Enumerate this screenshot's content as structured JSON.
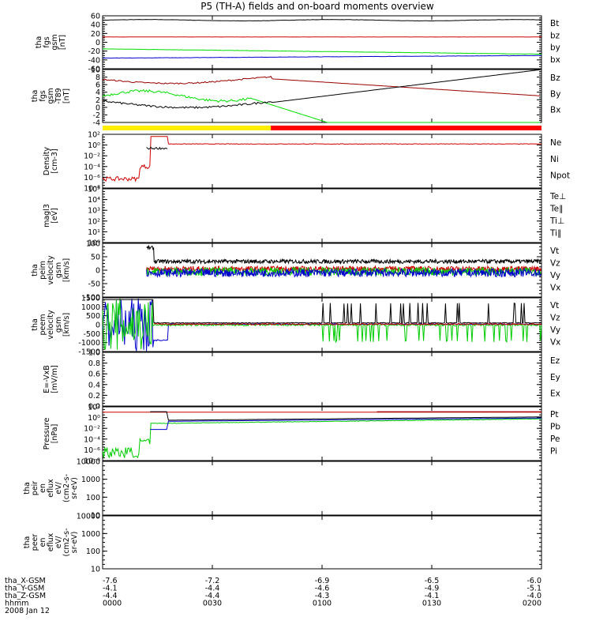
{
  "chart_data": {
    "type": "line",
    "title": "P5 (TH-A) fields and on-board moments overview",
    "date": "2008 Jan 12",
    "time_axis": {
      "label": "hhmm",
      "ticks": [
        "0000",
        "0030",
        "0100",
        "0130",
        "0200"
      ]
    },
    "ephemeris": [
      {
        "label": "tha_X-GSM",
        "values": [
          "-7.6",
          "-7.2",
          "-6.9",
          "-6.5",
          "-6.0"
        ]
      },
      {
        "label": "tha_Y-GSM",
        "values": [
          "-4.1",
          "-4.4",
          "-4.6",
          "-4.9",
          "-5.1"
        ]
      },
      {
        "label": "tha_Z-GSM",
        "values": [
          "-4.4",
          "-4.4",
          "-4.3",
          "-4.1",
          "-4.0"
        ]
      }
    ],
    "panels": [
      {
        "id": "fgs",
        "ylabel": [
          "tha",
          "fgs",
          "gsm",
          "[nT]"
        ],
        "scale": "linear",
        "ylim": [
          -60,
          60
        ],
        "ticks": [
          "60",
          "40",
          "20",
          "0",
          "-20",
          "-40",
          "-60"
        ],
        "legend": [
          {
            "name": "Bt",
            "color": "#000000"
          },
          {
            "name": "bz",
            "color": "#cc0000"
          },
          {
            "name": "by",
            "color": "#00dd00"
          },
          {
            "name": "bx",
            "color": "#0000cc"
          }
        ]
      },
      {
        "id": "fgs_dsc",
        "ylabel": [
          "tha",
          "fgs",
          "gsm",
          "-T89",
          "[nT]"
        ],
        "scale": "linear",
        "ylim": [
          -6,
          10
        ],
        "ticks": [
          "10",
          "8",
          "6",
          "4",
          "2",
          "0",
          "-2",
          "-4"
        ],
        "legend": [
          {
            "name": "Bz",
            "color": "#990000"
          },
          {
            "name": "By",
            "color": "#00dd00"
          },
          {
            "name": "Bx",
            "color": "#000000"
          }
        ]
      },
      {
        "id": "density",
        "ylabel": [
          "Density",
          "[cm-3]"
        ],
        "scale": "log",
        "ylim": [
          -8,
          2
        ],
        "ticks": [
          "10²",
          "10⁰",
          "10⁻²",
          "10⁻⁴",
          "10⁻⁶",
          "10⁻⁸"
        ],
        "legend": [
          {
            "name": "Ne",
            "color": "#cc0000"
          },
          {
            "name": "Ni",
            "color": "#000000"
          },
          {
            "name": "Npot",
            "color": "#0000cc"
          }
        ]
      },
      {
        "id": "temp",
        "ylabel": [
          "magl3",
          "[eV]"
        ],
        "scale": "log",
        "ylim": [
          0,
          5
        ],
        "ticks": [
          "10⁵",
          "10⁴",
          "10³",
          "10²",
          "10¹",
          "10⁰"
        ],
        "legend": [
          {
            "name": "Te⊥",
            "color": "#cc0000"
          },
          {
            "name": "Te∥",
            "color": "#000000"
          },
          {
            "name": "Ti⊥",
            "color": "#0000cc"
          },
          {
            "name": "Ti∥",
            "color": "#00cc00"
          }
        ]
      },
      {
        "id": "peim",
        "ylabel": [
          "tha",
          "peim",
          "velocity",
          "gsm",
          "[km/s]"
        ],
        "scale": "linear",
        "ylim": [
          -100,
          100
        ],
        "ticks": [
          "100",
          "50",
          "0",
          "-50",
          "-100"
        ],
        "legend": [
          {
            "name": "Vt",
            "color": "#000000"
          },
          {
            "name": "Vz",
            "color": "#cc0000"
          },
          {
            "name": "Vy",
            "color": "#00cc00"
          },
          {
            "name": "Vx",
            "color": "#0000cc"
          }
        ]
      },
      {
        "id": "peem",
        "ylabel": [
          "tha",
          "peem",
          "velocity",
          "gsm",
          "[km/s]"
        ],
        "scale": "linear",
        "ylim": [
          -1500,
          1500
        ],
        "ticks": [
          "1500",
          "1000",
          "500",
          "0",
          "-500",
          "-1000",
          "-1500"
        ],
        "legend": [
          {
            "name": "Vt",
            "color": "#000000"
          },
          {
            "name": "Vz",
            "color": "#cc0000"
          },
          {
            "name": "Vy",
            "color": "#00cc00"
          },
          {
            "name": "Vx",
            "color": "#0000cc"
          }
        ]
      },
      {
        "id": "efield",
        "ylabel": [
          "E=-VxB",
          "[mV/m]"
        ],
        "scale": "linear",
        "ylim": [
          0,
          1
        ],
        "ticks": [
          "1.0",
          "0.8",
          "0.6",
          "0.4",
          "0.2",
          "0.0"
        ],
        "legend": [
          {
            "name": "Ez",
            "color": "#cc0000"
          },
          {
            "name": "Ey",
            "color": "#00cc00"
          },
          {
            "name": "Ex",
            "color": "#0000cc"
          }
        ]
      },
      {
        "id": "pressure",
        "ylabel": [
          "Pressure",
          "[nPa]"
        ],
        "scale": "log",
        "ylim": [
          -8,
          2
        ],
        "ticks": [
          "10²",
          "10⁰",
          "10⁻²",
          "10⁻⁴",
          "10⁻⁶",
          "10⁻⁸"
        ],
        "legend": [
          {
            "name": "Pt",
            "color": "#000000"
          },
          {
            "name": "Pb",
            "color": "#990000"
          },
          {
            "name": "Pe",
            "color": "#00cc00"
          },
          {
            "name": "Pi",
            "color": "#0000cc"
          }
        ]
      },
      {
        "id": "peir_en",
        "ylabel": [
          "tha",
          "peir",
          "en",
          "eflux",
          "eV/",
          "(cm2-s-",
          "sr-eV)"
        ],
        "scale": "log",
        "ylim": [
          1,
          4
        ],
        "ticks": [
          "10000",
          "1000",
          "100",
          "10"
        ],
        "legend": []
      },
      {
        "id": "peer_en",
        "ylabel": [
          "tha",
          "peer",
          "en",
          "eflux",
          "eV/",
          "(cm2-s-",
          "sr-eV)"
        ],
        "scale": "log",
        "ylim": [
          1,
          4
        ],
        "ticks": [
          "10000",
          "1000",
          "100",
          "10"
        ],
        "legend": []
      }
    ],
    "mode_bar": [
      {
        "color": "#ffee00",
        "from_hhmm": "0000",
        "to_hhmm": "0046"
      },
      {
        "color": "#ff0000",
        "from_hhmm": "0046",
        "to_hhmm": "0200"
      }
    ]
  }
}
